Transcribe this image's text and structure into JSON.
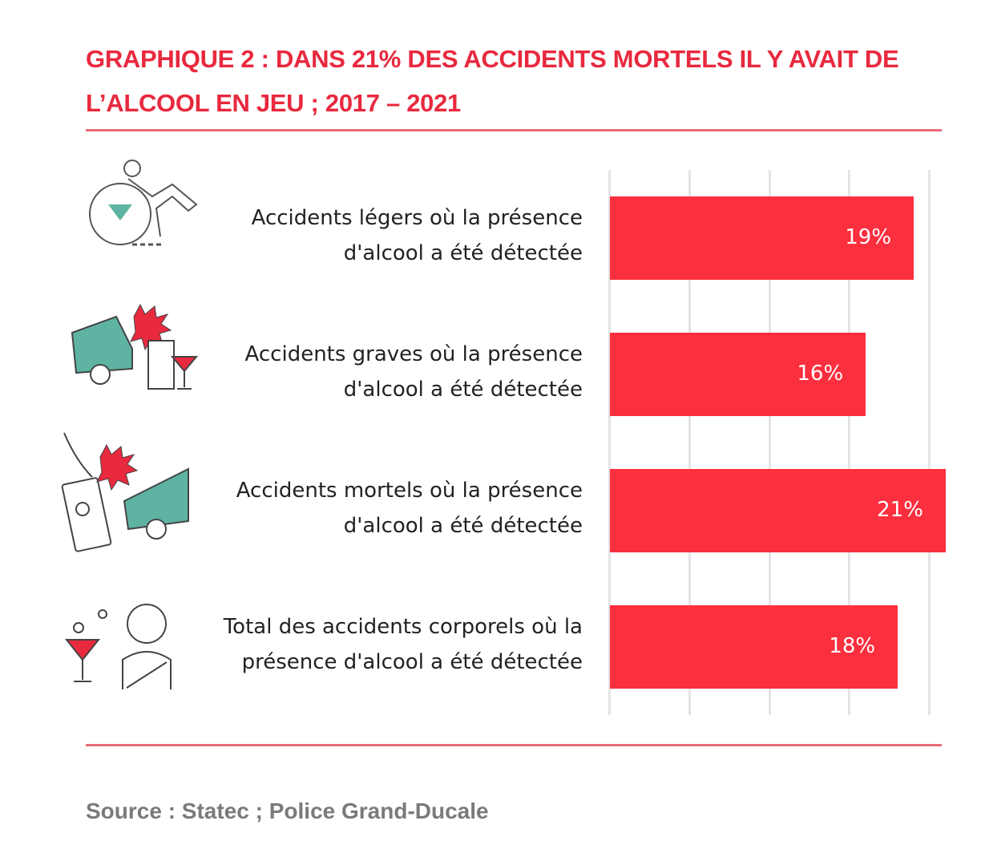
{
  "chart_data": {
    "type": "bar",
    "orientation": "horizontal",
    "title_line1": "GRAPHIQUE 2 : DANS 21% DES ACCIDENTS MORTELS IL Y AVAIT DE",
    "title_line2": "L’ALCOOL EN JEU ; 2017 – 2021",
    "categories": [
      [
        "Accidents légers où la présence",
        "d'alcool a été détectée"
      ],
      [
        "Accidents graves où la présence",
        "d'alcool a été détectée"
      ],
      [
        "Accidents mortels où la présence",
        "d'alcool a été détectée"
      ],
      [
        "Total des accidents corporels où la",
        "présence d'alcool a été détectée"
      ]
    ],
    "values": [
      19,
      16,
      21,
      18
    ],
    "value_labels": [
      "19%",
      "16%",
      "21%",
      "18%"
    ],
    "xlim": [
      0,
      21
    ],
    "gridlines": [
      0,
      5,
      10,
      15,
      20
    ],
    "grid": true,
    "bar_color": "#fc2f3f",
    "source": "Source : Statec ; Police Grand-Ducale"
  }
}
